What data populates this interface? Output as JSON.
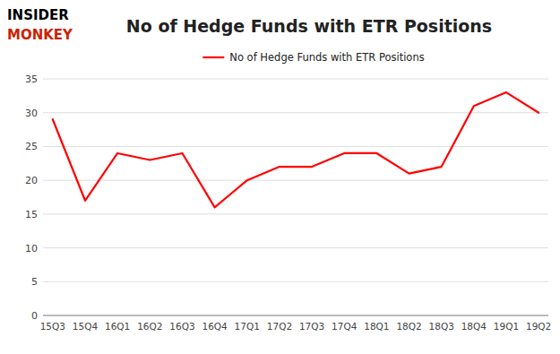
{
  "chart_data": {
    "type": "line",
    "title": "No of Hedge Funds with ETR Positions",
    "categories": [
      "15Q3",
      "15Q4",
      "16Q1",
      "16Q2",
      "16Q3",
      "16Q4",
      "17Q1",
      "17Q2",
      "17Q3",
      "17Q4",
      "18Q1",
      "18Q2",
      "18Q3",
      "18Q4",
      "19Q1",
      "19Q2"
    ],
    "series": [
      {
        "name": "No of Hedge Funds with ETR Positions",
        "color": "#ff0000",
        "values": [
          29,
          17,
          24,
          23,
          24,
          16,
          20,
          22,
          22,
          24,
          24,
          21,
          22,
          31,
          33,
          30
        ]
      }
    ],
    "ylim": [
      0,
      35
    ],
    "yticks": [
      0,
      5,
      10,
      15,
      20,
      25,
      30,
      35
    ],
    "grid": true,
    "legend": "top",
    "annotations": [
      {
        "text": "INSIDER",
        "color": "#000000"
      },
      {
        "text": "MONKEY",
        "color": "#cc2200"
      }
    ]
  }
}
